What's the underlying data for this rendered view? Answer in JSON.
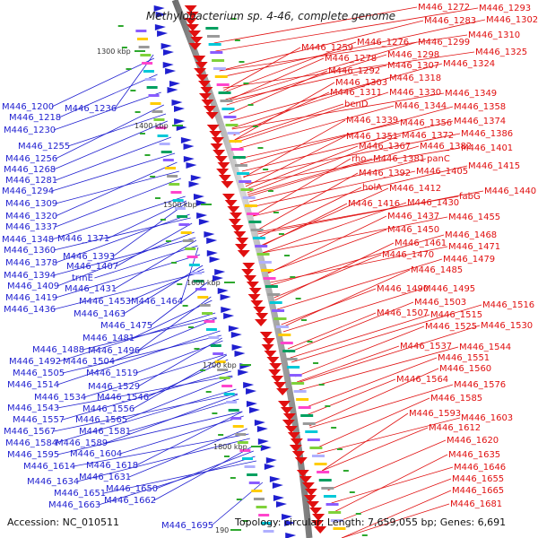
{
  "title": "Methylobacterium sp. 4-46, complete genome",
  "footer": {
    "accession": "Accession: NC_010511",
    "summary": "Topology: circular; Length: 7,659,055 bp; Genes: 6,691"
  },
  "colors": {
    "forward_genes": "#e01010",
    "reverse_genes": "#1f1fd0",
    "backbone": "#9a9a9a"
  },
  "kbp_ticks": [
    "1300 kbp",
    "1400 kbp",
    "1500 kbp",
    "1600 kbp",
    "1700 kbp",
    "1800 kbp",
    "190"
  ],
  "left_labels": [
    "M446_1236",
    "M446_1200",
    "M446_1218",
    "M446_1230",
    "M446_1255",
    "M446_1256",
    "M446_1268",
    "M446_1281",
    "M446_1294",
    "M446_1309",
    "M446_1320",
    "M446_1337",
    "M446_1348",
    "M446_1371",
    "M446_1360",
    "M446_1393",
    "M446_1378",
    "M446_1407",
    "M446_1394",
    "trmE",
    "M446_1409",
    "M446_1431",
    "M446_1419",
    "M446_1436",
    "M446_1453",
    "M446_1464",
    "M446_1463",
    "M446_1475",
    "M446_1481",
    "M446_1488",
    "M446_1496",
    "M446_1492",
    "M446_1504",
    "M446_1505",
    "M446_1519",
    "M446_1514",
    "M446_1529",
    "M446_1534",
    "M446_1546",
    "M446_1543",
    "M446_1556",
    "M446_1557",
    "M446_1565",
    "M446_1567",
    "M446_1581",
    "M446_1584",
    "M446_1589",
    "M446_1595",
    "M446_1604",
    "M446_1614",
    "M446_1618",
    "M446_1631",
    "M446_1634",
    "M446_1650",
    "M446_1651",
    "M446_1662",
    "M446_1663",
    "M446_1695"
  ],
  "right_labels": [
    "M446_1272",
    "M446_1293",
    "M446_1283",
    "M446_1302",
    "M446_1310",
    "M446_1259",
    "M446_1276",
    "M446_1299",
    "M446_1325",
    "M446_1278",
    "M446_1298",
    "M446_1324",
    "M446_1307",
    "M446_1292",
    "M446_1318",
    "M446_1303",
    "M446_1349",
    "M446_1311",
    "M446_1330",
    "M446_1358",
    "benD",
    "M446_1344",
    "M446_1374",
    "M446_1339",
    "M446_1356",
    "M446_1386",
    "M446_1351",
    "M446_1372",
    "M446_1401",
    "M446_1367",
    "M446_1382",
    "rho",
    "M446_1381",
    "panC",
    "M446_1415",
    "M446_1392",
    "M446_1405",
    "M446_1440",
    "holA",
    "M446_1412",
    "fabG",
    "M446_1416",
    "M446_1430",
    "M446_1437",
    "M446_1455",
    "M446_1450",
    "M446_1468",
    "M446_1461",
    "M446_1471",
    "M446_1470",
    "M446_1479",
    "M446_1485",
    "M446_1490",
    "M446_1495",
    "M446_1503",
    "M446_1516",
    "M446_1507",
    "M446_1515",
    "M446_1525",
    "M446_1530",
    "M446_1537",
    "M446_1544",
    "M446_1551",
    "M446_1560",
    "M446_1564",
    "M446_1576",
    "M446_1585",
    "M446_1593",
    "M446_1603",
    "M446_1612",
    "M446_1620",
    "M446_1635",
    "M446_1646",
    "M446_1655",
    "M446_1665",
    "M446_1681"
  ]
}
